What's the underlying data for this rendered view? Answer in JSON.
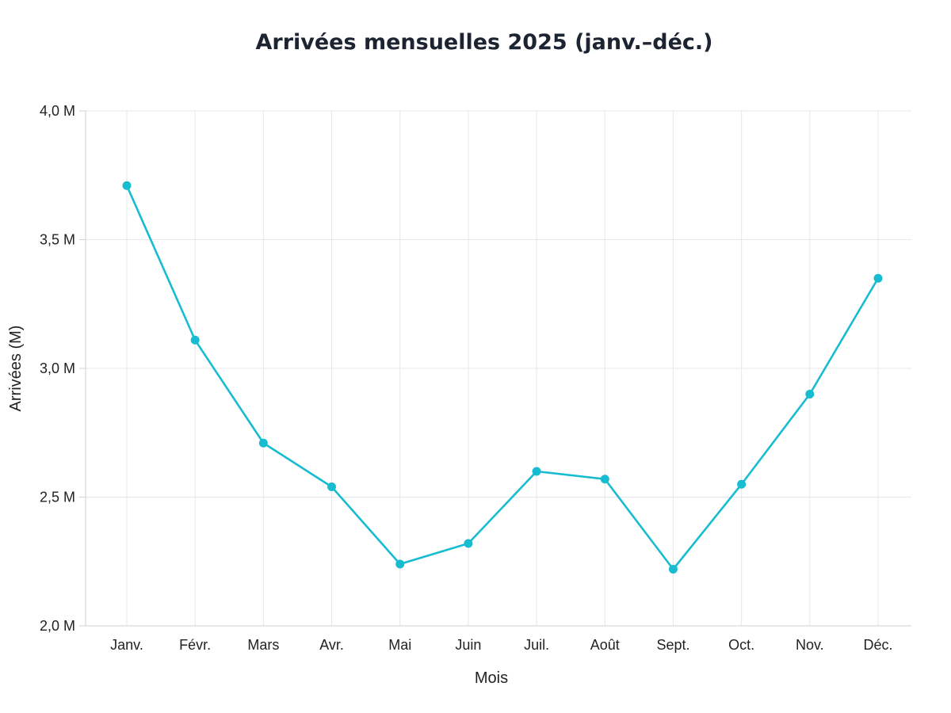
{
  "chart_data": {
    "type": "line",
    "title": "Arrivées mensuelles 2025 (janv.–déc.)",
    "xlabel": "Mois",
    "ylabel": "Arrivées (M)",
    "categories": [
      "Janv.",
      "Févr.",
      "Mars",
      "Avr.",
      "Mai",
      "Juin",
      "Juil.",
      "Août",
      "Sept.",
      "Oct.",
      "Nov.",
      "Déc."
    ],
    "series": [
      {
        "values": [
          3.71,
          3.11,
          2.71,
          2.54,
          2.24,
          2.32,
          2.6,
          2.57,
          2.22,
          2.55,
          2.9,
          3.35
        ],
        "color": "#17bcd0"
      }
    ],
    "ylim": [
      2.0,
      4.0
    ],
    "yticks": [
      {
        "value": 2.0,
        "label": "2,0 M"
      },
      {
        "value": 2.5,
        "label": "2,5 M"
      },
      {
        "value": 3.0,
        "label": "3,0 M"
      },
      {
        "value": 3.5,
        "label": "3,5 M"
      },
      {
        "value": 4.0,
        "label": "4,0 M"
      }
    ],
    "grid": true,
    "legend": "none"
  }
}
